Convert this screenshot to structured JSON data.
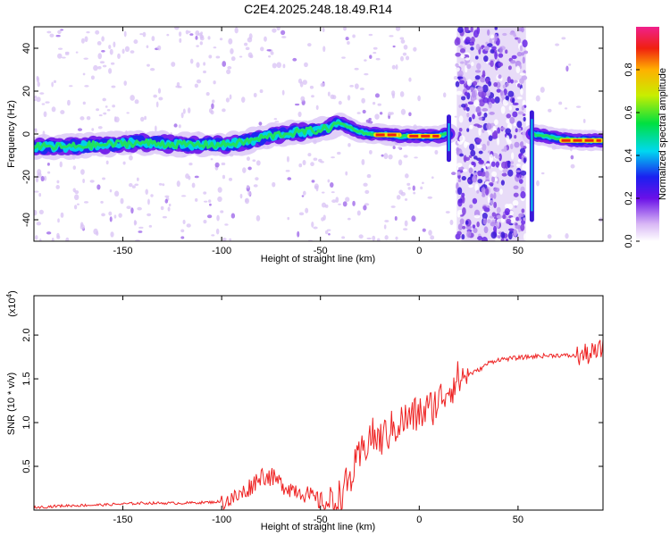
{
  "title": "C2E4.2025.248.18.49.R14",
  "chart_data": [
    {
      "type": "heatmap",
      "name": "spectrogram",
      "xlabel": "Height of straight line (km)",
      "ylabel": "Frequency (Hz)",
      "xlim": [
        -195,
        93
      ],
      "ylim": [
        -50,
        50
      ],
      "xticks": [
        -150,
        -100,
        -50,
        0,
        50
      ],
      "yticks": [
        -40,
        -20,
        0,
        20,
        40
      ],
      "colorbar": {
        "label": "Normalized spectral amplitude",
        "range": [
          0,
          1
        ],
        "ticks": [
          0.0,
          0.2,
          0.4,
          0.6,
          0.8
        ]
      },
      "ridge": {
        "x": [
          -195,
          -180,
          -160,
          -140,
          -120,
          -100,
          -90,
          -80,
          -70,
          -60,
          -50,
          -45,
          -40,
          -35,
          -30,
          -25,
          -20,
          -10,
          0,
          10,
          14,
          57,
          70,
          80,
          93
        ],
        "freq": [
          -6,
          -6,
          -5,
          -4,
          -5,
          -5,
          -4,
          -2,
          0,
          1,
          2,
          3,
          5,
          3,
          1,
          0,
          0,
          -1,
          -1,
          -1,
          0,
          0,
          -2,
          -3,
          -3
        ]
      },
      "noise_band_x": [
        19,
        54
      ],
      "spikes_x": [
        15,
        57
      ]
    },
    {
      "type": "line",
      "name": "snr",
      "xlabel": "Height of straight line (km)",
      "ylabel": "SNR (10 * v/v)",
      "y_multiplier": "(x10",
      "y_multiplier_exp": "4",
      "y_multiplier_close": ")",
      "color": "#ee2222",
      "xlim": [
        -195,
        93
      ],
      "ylim": [
        0,
        2.45
      ],
      "xticks": [
        -150,
        -100,
        -50,
        0,
        50
      ],
      "yticks": [
        0.5,
        1.0,
        1.5,
        2.0
      ],
      "series": [
        {
          "name": "SNR",
          "x": [
            -195,
            -180,
            -160,
            -140,
            -120,
            -105,
            -100,
            -95,
            -90,
            -85,
            -80,
            -75,
            -70,
            -65,
            -60,
            -55,
            -50,
            -45,
            -40,
            -35,
            -30,
            -25,
            -20,
            -15,
            -10,
            -5,
            0,
            5,
            10,
            15,
            20,
            25,
            30,
            35,
            40,
            50,
            60,
            70,
            80,
            85,
            90,
            93
          ],
          "y": [
            0.03,
            0.05,
            0.06,
            0.08,
            0.08,
            0.09,
            0.1,
            0.12,
            0.18,
            0.28,
            0.4,
            0.38,
            0.3,
            0.25,
            0.22,
            0.15,
            0.1,
            0.06,
            0.15,
            0.35,
            0.6,
            0.85,
            0.8,
            0.9,
            1.0,
            1.05,
            1.1,
            1.15,
            1.25,
            1.4,
            1.5,
            1.55,
            1.6,
            1.68,
            1.72,
            1.74,
            1.76,
            1.77,
            1.76,
            1.78,
            1.8,
            1.85
          ]
        }
      ]
    }
  ]
}
